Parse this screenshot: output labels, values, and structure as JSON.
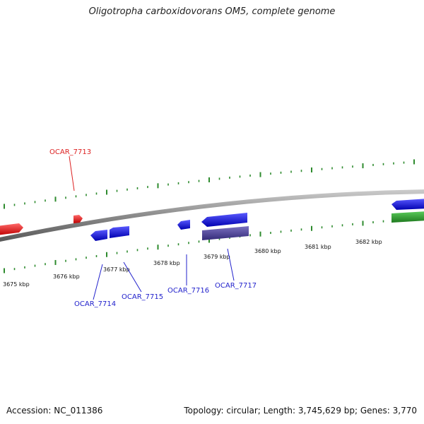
{
  "title": "Oligotropha carboxidovorans OM5, complete genome",
  "footer": {
    "accession": "Accession: NC_011386",
    "summary": "Topology: circular; Length: 3,745,629 bp; Genes: 3,770"
  },
  "colors": {
    "backbone": "#8a8a8a",
    "tick": "#2e8b2e",
    "gene_red": "#ee0000",
    "gene_blue": "#0000ee",
    "gene_navy": "#4a3f96",
    "gene_green": "#2e9a2e",
    "label_red": "#dd2222",
    "label_blue": "#2222cc"
  },
  "scale_labels": [
    "3675 kbp",
    "3676 kbp",
    "3677 kbp",
    "3678 kbp",
    "3679 kbp",
    "3680 kbp",
    "3681 kbp",
    "3682 kbp"
  ],
  "gene_labels": [
    "OCAR_7713",
    "OCAR_7714",
    "OCAR_7715",
    "OCAR_7716",
    "OCAR_7717"
  ]
}
